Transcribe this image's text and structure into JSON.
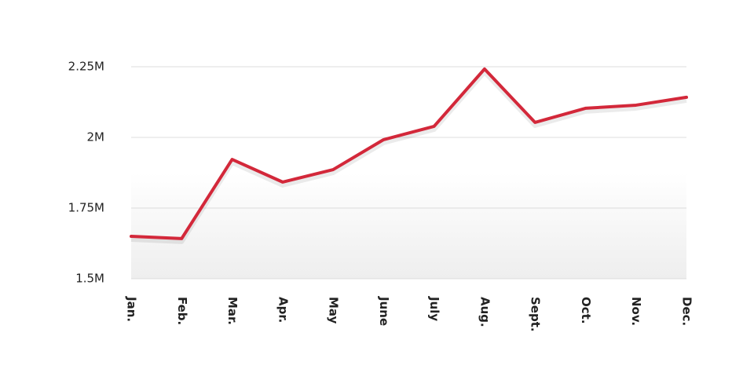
{
  "chart_data": {
    "type": "line",
    "categories": [
      "Jan.",
      "Feb.",
      "Mar.",
      "Apr.",
      "May",
      "June",
      "July",
      "Aug.",
      "Sept.",
      "Oct.",
      "Nov.",
      "Dec."
    ],
    "series": [
      {
        "color": "#d3283a",
        "values": [
          1650000,
          1642000,
          1922000,
          1842000,
          1886000,
          1992000,
          2039000,
          2242000,
          2053000,
          2103000,
          2114000,
          2142000
        ]
      }
    ],
    "ylim": [
      1500000,
      2250000
    ],
    "yticks": [
      {
        "value": 1500000,
        "label": "1.5M"
      },
      {
        "value": 1750000,
        "label": "1.75M"
      },
      {
        "value": 2000000,
        "label": "2M"
      },
      {
        "value": 2250000,
        "label": "2.25M"
      }
    ],
    "grid": true
  }
}
